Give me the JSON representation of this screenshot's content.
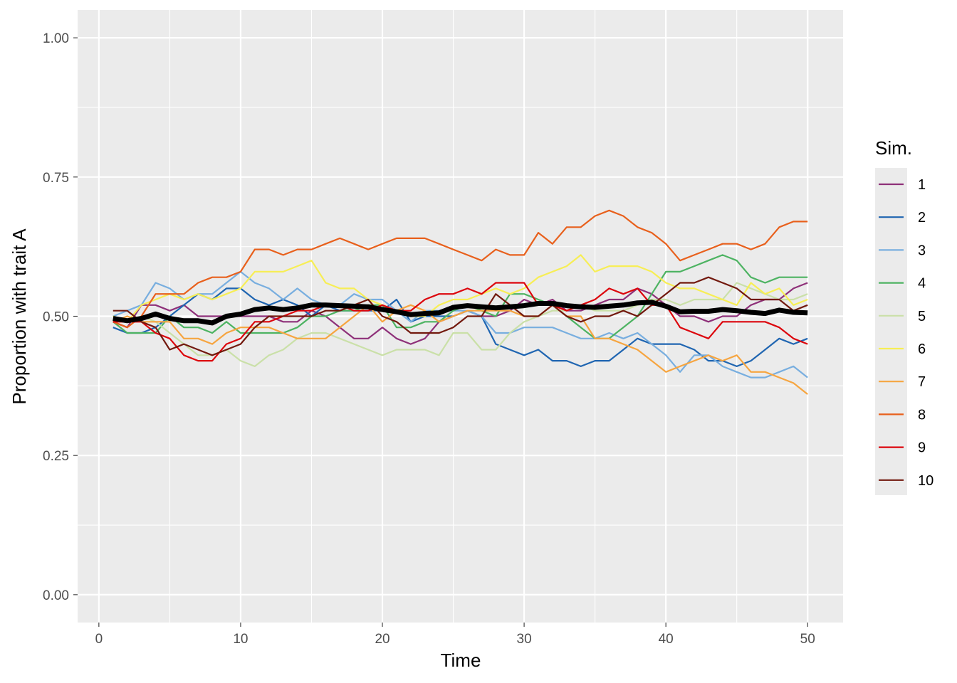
{
  "chart_data": {
    "type": "line",
    "xlabel": "Time",
    "ylabel": "Proportion with trait A",
    "xlim": [
      -1.5,
      52.5
    ],
    "ylim": [
      -0.05,
      1.05
    ],
    "x_ticks": [
      0,
      10,
      20,
      30,
      40,
      50
    ],
    "x_tick_labels": [
      "0",
      "10",
      "20",
      "30",
      "40",
      "50"
    ],
    "y_ticks": [
      0,
      0.25,
      0.5,
      0.75,
      1.0
    ],
    "y_tick_labels": [
      "0.00",
      "0.25",
      "0.50",
      "0.75",
      "1.00"
    ],
    "grid": true,
    "background": "#ebebeb",
    "legend": {
      "title": "Sim.",
      "position": "right"
    },
    "x": [
      1,
      2,
      3,
      4,
      5,
      6,
      7,
      8,
      9,
      10,
      11,
      12,
      13,
      14,
      15,
      16,
      17,
      18,
      19,
      20,
      21,
      22,
      23,
      24,
      25,
      26,
      27,
      28,
      29,
      30,
      31,
      32,
      33,
      34,
      35,
      36,
      37,
      38,
      39,
      40,
      41,
      42,
      43,
      44,
      45,
      46,
      47,
      48,
      49,
      50
    ],
    "series": [
      {
        "name": "1",
        "color": "#8e3079",
        "values": [
          0.49,
          0.48,
          0.52,
          0.52,
          0.51,
          0.52,
          0.5,
          0.5,
          0.5,
          0.5,
          0.5,
          0.5,
          0.49,
          0.49,
          0.51,
          0.5,
          0.48,
          0.46,
          0.46,
          0.48,
          0.46,
          0.45,
          0.46,
          0.49,
          0.5,
          0.51,
          0.5,
          0.5,
          0.51,
          0.53,
          0.52,
          0.53,
          0.51,
          0.51,
          0.52,
          0.53,
          0.53,
          0.55,
          0.54,
          0.52,
          0.5,
          0.5,
          0.49,
          0.5,
          0.5,
          0.52,
          0.53,
          0.53,
          0.55,
          0.56
        ]
      },
      {
        "name": "2",
        "color": "#1f65b1",
        "values": [
          0.48,
          0.47,
          0.47,
          0.48,
          0.5,
          0.52,
          0.54,
          0.53,
          0.55,
          0.55,
          0.53,
          0.52,
          0.53,
          0.52,
          0.5,
          0.52,
          0.51,
          0.51,
          0.51,
          0.51,
          0.53,
          0.49,
          0.5,
          0.5,
          0.5,
          0.51,
          0.5,
          0.45,
          0.44,
          0.43,
          0.44,
          0.42,
          0.42,
          0.41,
          0.42,
          0.42,
          0.44,
          0.46,
          0.45,
          0.45,
          0.45,
          0.44,
          0.42,
          0.42,
          0.41,
          0.42,
          0.44,
          0.46,
          0.45,
          0.46
        ]
      },
      {
        "name": "3",
        "color": "#78aedf",
        "values": [
          0.5,
          0.51,
          0.52,
          0.56,
          0.55,
          0.53,
          0.54,
          0.54,
          0.56,
          0.58,
          0.56,
          0.55,
          0.53,
          0.55,
          0.53,
          0.52,
          0.52,
          0.54,
          0.53,
          0.53,
          0.51,
          0.49,
          0.51,
          0.51,
          0.51,
          0.51,
          0.5,
          0.47,
          0.47,
          0.48,
          0.48,
          0.48,
          0.47,
          0.46,
          0.46,
          0.47,
          0.46,
          0.47,
          0.45,
          0.43,
          0.4,
          0.43,
          0.43,
          0.41,
          0.4,
          0.39,
          0.39,
          0.4,
          0.41,
          0.39
        ]
      },
      {
        "name": "4",
        "color": "#4db362",
        "values": [
          0.49,
          0.47,
          0.47,
          0.47,
          0.5,
          0.48,
          0.48,
          0.47,
          0.49,
          0.47,
          0.47,
          0.47,
          0.47,
          0.48,
          0.5,
          0.5,
          0.51,
          0.51,
          0.52,
          0.52,
          0.48,
          0.48,
          0.49,
          0.49,
          0.51,
          0.52,
          0.51,
          0.5,
          0.54,
          0.54,
          0.53,
          0.52,
          0.5,
          0.48,
          0.46,
          0.46,
          0.48,
          0.5,
          0.54,
          0.58,
          0.58,
          0.59,
          0.6,
          0.61,
          0.6,
          0.57,
          0.56,
          0.57,
          0.57,
          0.57
        ]
      },
      {
        "name": "5",
        "color": "#cae0a8",
        "values": [
          0.5,
          0.49,
          0.5,
          0.49,
          0.47,
          0.45,
          0.43,
          0.43,
          0.44,
          0.42,
          0.41,
          0.43,
          0.44,
          0.46,
          0.47,
          0.47,
          0.46,
          0.45,
          0.44,
          0.43,
          0.44,
          0.44,
          0.44,
          0.43,
          0.47,
          0.47,
          0.44,
          0.44,
          0.47,
          0.49,
          0.5,
          0.51,
          0.51,
          0.52,
          0.51,
          0.51,
          0.51,
          0.52,
          0.53,
          0.53,
          0.52,
          0.53,
          0.53,
          0.53,
          0.56,
          0.55,
          0.54,
          0.53,
          0.53,
          0.54
        ]
      },
      {
        "name": "6",
        "color": "#f7ee55",
        "values": [
          0.5,
          0.49,
          0.52,
          0.53,
          0.54,
          0.53,
          0.54,
          0.53,
          0.54,
          0.55,
          0.58,
          0.58,
          0.58,
          0.59,
          0.6,
          0.56,
          0.55,
          0.55,
          0.53,
          0.52,
          0.51,
          0.5,
          0.5,
          0.52,
          0.53,
          0.53,
          0.54,
          0.55,
          0.54,
          0.55,
          0.57,
          0.58,
          0.59,
          0.61,
          0.58,
          0.59,
          0.59,
          0.59,
          0.58,
          0.56,
          0.55,
          0.55,
          0.54,
          0.53,
          0.52,
          0.56,
          0.54,
          0.55,
          0.52,
          0.53
        ]
      },
      {
        "name": "7",
        "color": "#f6a540",
        "values": [
          0.49,
          0.5,
          0.49,
          0.49,
          0.49,
          0.46,
          0.46,
          0.45,
          0.47,
          0.48,
          0.48,
          0.48,
          0.47,
          0.46,
          0.46,
          0.46,
          0.48,
          0.5,
          0.52,
          0.49,
          0.51,
          0.52,
          0.51,
          0.49,
          0.5,
          0.51,
          0.51,
          0.51,
          0.51,
          0.5,
          0.5,
          0.52,
          0.5,
          0.5,
          0.46,
          0.46,
          0.45,
          0.44,
          0.42,
          0.4,
          0.41,
          0.42,
          0.43,
          0.42,
          0.43,
          0.4,
          0.4,
          0.39,
          0.38,
          0.36
        ]
      },
      {
        "name": "8",
        "color": "#e8601c",
        "values": [
          0.49,
          0.48,
          0.5,
          0.54,
          0.54,
          0.54,
          0.56,
          0.57,
          0.57,
          0.58,
          0.62,
          0.62,
          0.61,
          0.62,
          0.62,
          0.63,
          0.64,
          0.63,
          0.62,
          0.63,
          0.64,
          0.64,
          0.64,
          0.63,
          0.62,
          0.61,
          0.6,
          0.62,
          0.61,
          0.61,
          0.65,
          0.63,
          0.66,
          0.66,
          0.68,
          0.69,
          0.68,
          0.66,
          0.65,
          0.63,
          0.6,
          0.61,
          0.62,
          0.63,
          0.63,
          0.62,
          0.63,
          0.66,
          0.67,
          0.67
        ]
      },
      {
        "name": "9",
        "color": "#dc050c",
        "values": [
          0.49,
          0.49,
          0.49,
          0.47,
          0.46,
          0.43,
          0.42,
          0.42,
          0.45,
          0.46,
          0.49,
          0.49,
          0.5,
          0.51,
          0.51,
          0.52,
          0.52,
          0.51,
          0.51,
          0.52,
          0.51,
          0.51,
          0.53,
          0.54,
          0.54,
          0.55,
          0.54,
          0.56,
          0.56,
          0.56,
          0.52,
          0.52,
          0.51,
          0.52,
          0.53,
          0.55,
          0.54,
          0.55,
          0.52,
          0.52,
          0.48,
          0.47,
          0.46,
          0.49,
          0.49,
          0.49,
          0.49,
          0.48,
          0.46,
          0.45
        ]
      },
      {
        "name": "10",
        "color": "#72190e",
        "values": [
          0.51,
          0.51,
          0.49,
          0.48,
          0.44,
          0.45,
          0.44,
          0.43,
          0.44,
          0.45,
          0.48,
          0.5,
          0.5,
          0.5,
          0.5,
          0.51,
          0.51,
          0.52,
          0.53,
          0.5,
          0.49,
          0.47,
          0.47,
          0.47,
          0.48,
          0.5,
          0.5,
          0.54,
          0.52,
          0.5,
          0.5,
          0.52,
          0.5,
          0.49,
          0.5,
          0.5,
          0.51,
          0.5,
          0.52,
          0.54,
          0.56,
          0.56,
          0.57,
          0.56,
          0.55,
          0.53,
          0.53,
          0.53,
          0.51,
          0.52
        ]
      }
    ],
    "mean_series": {
      "color": "#000000",
      "values": [
        0.496,
        0.492,
        0.496,
        0.504,
        0.496,
        0.492,
        0.492,
        0.488,
        0.5,
        0.504,
        0.512,
        0.515,
        0.512,
        0.515,
        0.52,
        0.52,
        0.519,
        0.518,
        0.517,
        0.512,
        0.508,
        0.503,
        0.505,
        0.506,
        0.516,
        0.519,
        0.517,
        0.515,
        0.517,
        0.519,
        0.523,
        0.523,
        0.519,
        0.517,
        0.516,
        0.518,
        0.52,
        0.524,
        0.525,
        0.518,
        0.508,
        0.509,
        0.509,
        0.512,
        0.51,
        0.507,
        0.505,
        0.511,
        0.507,
        0.506
      ]
    }
  }
}
